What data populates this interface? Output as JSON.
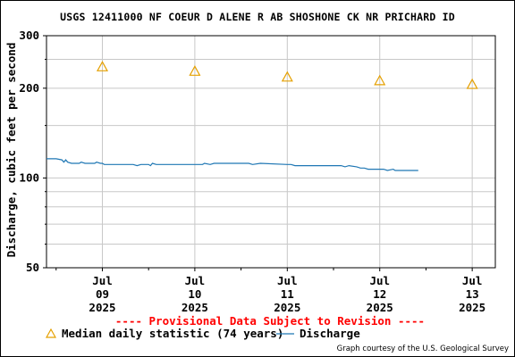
{
  "chart_data": {
    "type": "line",
    "title": "USGS 12411000 NF COEUR D ALENE R AB SHOSHONE CK NR PRICHARD ID",
    "ylabel": "Discharge, cubic feet per second",
    "xlabel": "",
    "y_scale": "log",
    "ylim": [
      50,
      300
    ],
    "y_ticks": [
      {
        "value": 50,
        "label": "50"
      },
      {
        "value": 100,
        "label": "100"
      },
      {
        "value": 200,
        "label": "200"
      },
      {
        "value": 300,
        "label": "300"
      }
    ],
    "y_minor_grid": [
      60,
      70,
      80,
      90,
      150,
      250
    ],
    "xlim": [
      "2025-07-08T21:30",
      "2025-07-13T18:00"
    ],
    "x_ticks": [
      {
        "date": "2025-07-09",
        "label": [
          "Jul",
          "09",
          "2025"
        ]
      },
      {
        "date": "2025-07-10",
        "label": [
          "Jul",
          "10",
          "2025"
        ]
      },
      {
        "date": "2025-07-11",
        "label": [
          "Jul",
          "11",
          "2025"
        ]
      },
      {
        "date": "2025-07-12",
        "label": [
          "Jul",
          "12",
          "2025"
        ]
      },
      {
        "date": "2025-07-13",
        "label": [
          "Jul",
          "13",
          "2025"
        ]
      }
    ],
    "x_grid": [
      "2025-07-09T12:00",
      "2025-07-10T12:00",
      "2025-07-11T12:00",
      "2025-07-12T12:00",
      "2025-07-13T12:00"
    ],
    "grid": true,
    "series": [
      {
        "name": "Discharge",
        "kind": "line",
        "color": "#1f77b4",
        "points": [
          [
            "2025-07-08T21:30",
            116
          ],
          [
            "2025-07-09T00:00",
            116
          ],
          [
            "2025-07-09T01:30",
            115
          ],
          [
            "2025-07-09T02:00",
            113
          ],
          [
            "2025-07-09T02:30",
            115
          ],
          [
            "2025-07-09T03:00",
            113
          ],
          [
            "2025-07-09T04:00",
            112
          ],
          [
            "2025-07-09T06:00",
            112
          ],
          [
            "2025-07-09T06:30",
            113
          ],
          [
            "2025-07-09T07:30",
            112
          ],
          [
            "2025-07-09T10:00",
            112
          ],
          [
            "2025-07-09T10:30",
            113
          ],
          [
            "2025-07-09T11:30",
            112
          ],
          [
            "2025-07-09T12:00",
            112
          ],
          [
            "2025-07-09T12:30",
            111
          ],
          [
            "2025-07-09T20:00",
            111
          ],
          [
            "2025-07-09T21:00",
            110
          ],
          [
            "2025-07-09T22:00",
            111
          ],
          [
            "2025-07-10T00:00",
            111
          ],
          [
            "2025-07-10T00:30",
            110
          ],
          [
            "2025-07-10T01:00",
            112
          ],
          [
            "2025-07-10T02:00",
            111
          ],
          [
            "2025-07-10T06:00",
            111
          ],
          [
            "2025-07-10T12:00",
            111
          ],
          [
            "2025-07-10T14:00",
            111
          ],
          [
            "2025-07-10T14:30",
            112
          ],
          [
            "2025-07-10T16:00",
            111
          ],
          [
            "2025-07-10T17:00",
            112
          ],
          [
            "2025-07-10T18:00",
            112
          ],
          [
            "2025-07-11T00:00",
            112
          ],
          [
            "2025-07-11T02:00",
            112
          ],
          [
            "2025-07-11T03:00",
            111
          ],
          [
            "2025-07-11T05:00",
            112
          ],
          [
            "2025-07-11T12:00",
            111
          ],
          [
            "2025-07-11T13:00",
            111
          ],
          [
            "2025-07-11T14:00",
            110
          ],
          [
            "2025-07-11T16:00",
            110
          ],
          [
            "2025-07-11T18:00",
            110
          ],
          [
            "2025-07-12T00:00",
            110
          ],
          [
            "2025-07-12T02:00",
            110
          ],
          [
            "2025-07-12T03:00",
            109
          ],
          [
            "2025-07-12T04:00",
            110
          ],
          [
            "2025-07-12T06:00",
            109
          ],
          [
            "2025-07-12T07:00",
            108
          ],
          [
            "2025-07-12T08:00",
            108
          ],
          [
            "2025-07-12T09:00",
            107
          ],
          [
            "2025-07-12T10:00",
            107
          ],
          [
            "2025-07-12T12:00",
            107
          ],
          [
            "2025-07-12T13:00",
            107
          ],
          [
            "2025-07-12T14:00",
            106
          ],
          [
            "2025-07-12T15:30",
            107
          ],
          [
            "2025-07-12T16:00",
            106
          ],
          [
            "2025-07-12T17:00",
            106
          ],
          [
            "2025-07-12T18:00",
            106
          ],
          [
            "2025-07-12T22:00",
            106
          ]
        ]
      },
      {
        "name": "Median daily statistic (74 years)",
        "kind": "marker",
        "marker": "triangle",
        "color": "#e5a000",
        "points": [
          [
            "2025-07-09T12:00",
            236
          ],
          [
            "2025-07-10T12:00",
            228
          ],
          [
            "2025-07-11T12:00",
            218
          ],
          [
            "2025-07-12T12:00",
            212
          ],
          [
            "2025-07-13T12:00",
            206
          ]
        ]
      }
    ]
  },
  "provisional": {
    "text": "---- Provisional Data Subject to Revision ----",
    "color": "#ff0000"
  },
  "legend": {
    "median_label": "Median daily statistic (74 years)",
    "discharge_label": "Discharge"
  },
  "courtesy": "Graph courtesy of the U.S. Geological Survey",
  "colors": {
    "grid": "#c8c8c8",
    "axis": "#000000",
    "discharge": "#1f77b4",
    "median": "#e5a000"
  }
}
